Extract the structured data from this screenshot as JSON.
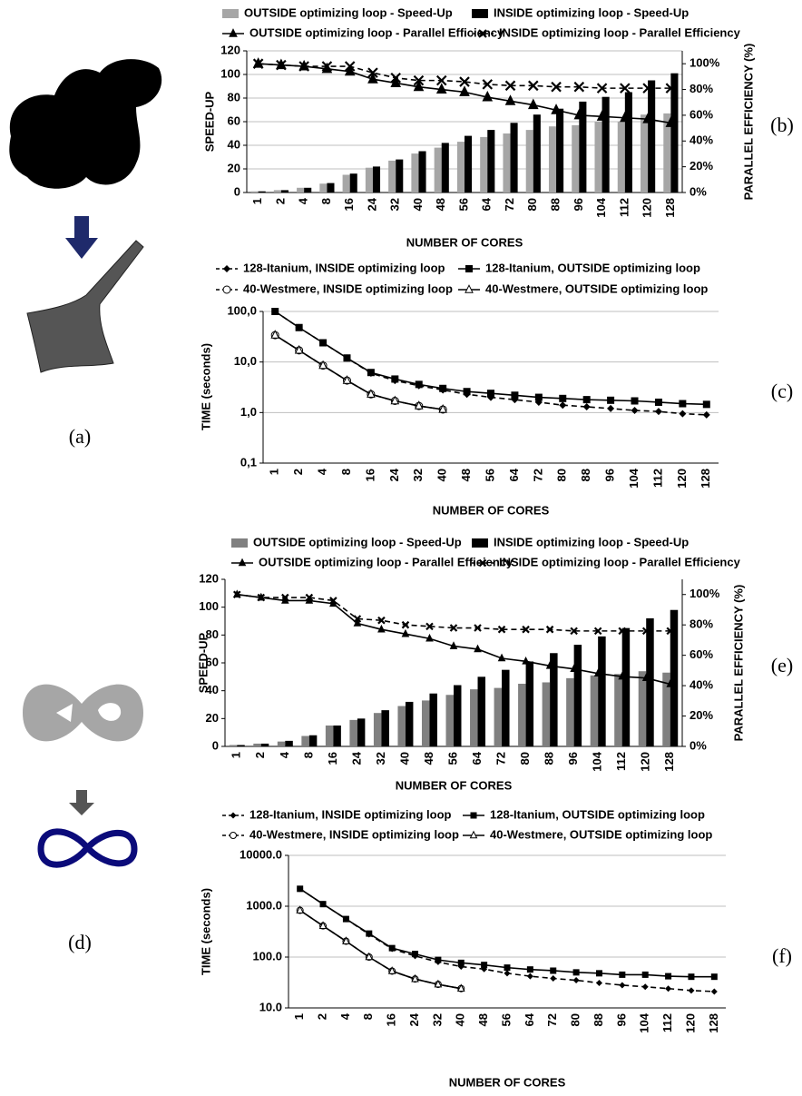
{
  "figure_labels": {
    "a": "(a)",
    "d": "(d)"
  },
  "chart_data": [
    {
      "type": "bar",
      "panel_label": "(b)",
      "y_label": "SPEED-UP",
      "y2_label": "PARALLEL EFFICIENCY (%)",
      "x_label": "NUMBER OF CORES",
      "categories": [
        "1",
        "2",
        "4",
        "8",
        "16",
        "24",
        "32",
        "40",
        "48",
        "56",
        "64",
        "72",
        "80",
        "88",
        "96",
        "104",
        "112",
        "120",
        "128"
      ],
      "ylim": [
        0,
        120
      ],
      "yticks": [
        0,
        20,
        40,
        60,
        80,
        100,
        120
      ],
      "y2lim": [
        0,
        110
      ],
      "y2ticks": [
        {
          "value": 0,
          "label": "0%"
        },
        {
          "value": 20,
          "label": "20%"
        },
        {
          "value": 40,
          "label": "40%"
        },
        {
          "value": 60,
          "label": "60%"
        },
        {
          "value": 80,
          "label": "80%"
        },
        {
          "value": 100,
          "label": "100%"
        }
      ],
      "grid": true,
      "series": [
        {
          "name": "OUTSIDE optimizing loop - Speed-Up",
          "type": "bar",
          "color": "#a6a6a6",
          "values": [
            1,
            2,
            4,
            7.5,
            15,
            21,
            27,
            33,
            38,
            43,
            47,
            50,
            53,
            56,
            57,
            60,
            60,
            66,
            67
          ]
        },
        {
          "name": "INSIDE optimizing loop - Speed-Up",
          "type": "bar",
          "color": "#000000",
          "values": [
            1,
            2,
            4,
            8,
            16,
            22,
            28,
            35,
            42,
            48,
            53,
            59,
            66,
            71,
            77,
            81,
            85,
            95,
            101
          ]
        },
        {
          "name": "OUTSIDE optimizing loop - Parallel Efficiency",
          "type": "line",
          "axis": "y2",
          "color": "#000000",
          "marker": "triangle",
          "dashed": false,
          "values": [
            100,
            99,
            98,
            96,
            94,
            88,
            85,
            82,
            80,
            78,
            74,
            71,
            68,
            64,
            60,
            59,
            58,
            57,
            54
          ]
        },
        {
          "name": "INSIDE optimizing loop - Parallel Efficiency",
          "type": "line",
          "axis": "y2",
          "color": "#000000",
          "marker": "x",
          "dashed": true,
          "values": [
            100,
            99,
            98,
            98,
            98,
            93,
            89,
            87,
            87,
            86,
            84,
            83,
            83,
            82,
            82,
            81,
            81,
            81,
            81
          ]
        }
      ]
    },
    {
      "type": "line",
      "panel_label": "(c)",
      "y_label": "TIME (seconds)",
      "x_label": "NUMBER OF CORES",
      "categories": [
        "1",
        "2",
        "4",
        "8",
        "16",
        "24",
        "32",
        "40",
        "48",
        "56",
        "64",
        "72",
        "80",
        "88",
        "96",
        "104",
        "112",
        "120",
        "128"
      ],
      "log_scale": true,
      "ylim": [
        0.1,
        100
      ],
      "yticks": [
        {
          "value": 0.1,
          "label": "0,1"
        },
        {
          "value": 1,
          "label": "1,0"
        },
        {
          "value": 10,
          "label": "10,0"
        },
        {
          "value": 100,
          "label": "100,0"
        }
      ],
      "grid": true,
      "series": [
        {
          "name": "128-Itanium, INSIDE optimizing loop",
          "color": "#000000",
          "marker": "diamond",
          "dashed": true,
          "values": [
            100,
            48,
            24,
            12,
            6,
            4.3,
            3.4,
            2.8,
            2.3,
            2.0,
            1.8,
            1.6,
            1.4,
            1.3,
            1.2,
            1.1,
            1.05,
            0.95,
            0.9
          ]
        },
        {
          "name": "128-Itanium, OUTSIDE optimizing loop",
          "color": "#000000",
          "marker": "square",
          "dashed": false,
          "values": [
            100,
            48,
            24,
            12,
            6.2,
            4.6,
            3.6,
            3.0,
            2.6,
            2.4,
            2.2,
            2.0,
            1.9,
            1.8,
            1.75,
            1.7,
            1.6,
            1.5,
            1.45
          ]
        },
        {
          "name": "40-Westmere, INSIDE optimizing loop",
          "color": "#000000",
          "marker": "open-circle",
          "dashed": true,
          "values": [
            34,
            17,
            8.5,
            4.3,
            2.3,
            1.7,
            1.35,
            1.15,
            null,
            null,
            null,
            null,
            null,
            null,
            null,
            null,
            null,
            null,
            null
          ]
        },
        {
          "name": "40-Westmere, OUTSIDE optimizing loop",
          "color": "#000000",
          "marker": "open-triangle",
          "dashed": false,
          "values": [
            34,
            17,
            8.5,
            4.3,
            2.3,
            1.7,
            1.35,
            1.15,
            null,
            null,
            null,
            null,
            null,
            null,
            null,
            null,
            null,
            null,
            null
          ]
        }
      ]
    },
    {
      "type": "bar",
      "panel_label": "(e)",
      "y_label": "SPEED-UP",
      "y2_label": "PARALLEL EFFICIENCY (%)",
      "x_label": "NUMBER OF CORES",
      "categories": [
        "1",
        "2",
        "4",
        "8",
        "16",
        "24",
        "32",
        "40",
        "48",
        "56",
        "64",
        "72",
        "80",
        "88",
        "96",
        "104",
        "112",
        "120",
        "128"
      ],
      "ylim": [
        0,
        120
      ],
      "yticks": [
        0,
        20,
        40,
        60,
        80,
        100,
        120
      ],
      "y2lim": [
        0,
        110
      ],
      "y2ticks": [
        {
          "value": 0,
          "label": "0%"
        },
        {
          "value": 20,
          "label": "20%"
        },
        {
          "value": 40,
          "label": "40%"
        },
        {
          "value": 60,
          "label": "60%"
        },
        {
          "value": 80,
          "label": "80%"
        },
        {
          "value": 100,
          "label": "100%"
        }
      ],
      "grid": false,
      "series": [
        {
          "name": "OUTSIDE optimizing loop - Speed-Up",
          "type": "bar",
          "color": "#808080",
          "values": [
            1,
            2,
            3.5,
            7.5,
            15,
            19,
            24,
            29,
            33,
            37,
            41,
            42,
            45,
            46,
            49,
            51,
            52,
            54,
            53
          ]
        },
        {
          "name": "INSIDE optimizing loop - Speed-Up",
          "type": "bar",
          "color": "#000000",
          "values": [
            1,
            2,
            4,
            8,
            15,
            20,
            26,
            32,
            38,
            44,
            50,
            55,
            61,
            67,
            73,
            79,
            85,
            92,
            98
          ]
        },
        {
          "name": "OUTSIDE optimizing loop - Parallel Efficiency",
          "type": "line",
          "axis": "y2",
          "color": "#000000",
          "marker": "triangle",
          "dashed": false,
          "values": [
            100,
            98,
            96,
            96,
            94,
            81,
            77,
            74,
            71,
            66,
            64,
            58,
            56,
            53,
            51,
            48,
            46,
            45,
            41
          ]
        },
        {
          "name": "INSIDE optimizing loop - Parallel Efficiency",
          "type": "line",
          "axis": "y2",
          "color": "#000000",
          "marker": "x",
          "dashed": true,
          "values": [
            100,
            98,
            98,
            98,
            96,
            84,
            83,
            80,
            79,
            78,
            78,
            77,
            77,
            77,
            76,
            76,
            76,
            76,
            76
          ]
        }
      ]
    },
    {
      "type": "line",
      "panel_label": "(f)",
      "y_label": "TIME (seconds)",
      "x_label": "NUMBER OF CORES",
      "categories": [
        "1",
        "2",
        "4",
        "8",
        "16",
        "24",
        "32",
        "40",
        "48",
        "56",
        "64",
        "72",
        "80",
        "88",
        "96",
        "104",
        "112",
        "120",
        "128"
      ],
      "log_scale": true,
      "ylim": [
        10,
        10000
      ],
      "yticks": [
        {
          "value": 10,
          "label": "10.0"
        },
        {
          "value": 100,
          "label": "100.0"
        },
        {
          "value": 1000,
          "label": "1000.0"
        },
        {
          "value": 10000,
          "label": "10000.0"
        }
      ],
      "grid": true,
      "series": [
        {
          "name": "128-Itanium, INSIDE optimizing loop",
          "color": "#000000",
          "marker": "diamond",
          "dashed": true,
          "values": [
            2200,
            1100,
            560,
            280,
            145,
            105,
            80,
            65,
            58,
            48,
            42,
            38,
            35,
            31,
            28,
            26,
            24,
            22,
            21
          ]
        },
        {
          "name": "128-Itanium, OUTSIDE optimizing loop",
          "color": "#000000",
          "marker": "square",
          "dashed": false,
          "values": [
            2200,
            1100,
            560,
            290,
            150,
            115,
            88,
            77,
            70,
            62,
            57,
            54,
            50,
            48,
            45,
            45,
            42,
            41,
            41
          ]
        },
        {
          "name": "40-Westmere, INSIDE optimizing loop",
          "color": "#000000",
          "marker": "open-circle",
          "dashed": true,
          "values": [
            830,
            410,
            205,
            100,
            53,
            37,
            29,
            24,
            null,
            null,
            null,
            null,
            null,
            null,
            null,
            null,
            null,
            null,
            null
          ]
        },
        {
          "name": "40-Westmere, OUTSIDE optimizing loop",
          "color": "#000000",
          "marker": "open-triangle",
          "dashed": false,
          "values": [
            830,
            410,
            205,
            100,
            53,
            37,
            29,
            24,
            null,
            null,
            null,
            null,
            null,
            null,
            null,
            null,
            null,
            null,
            null
          ]
        }
      ]
    }
  ]
}
